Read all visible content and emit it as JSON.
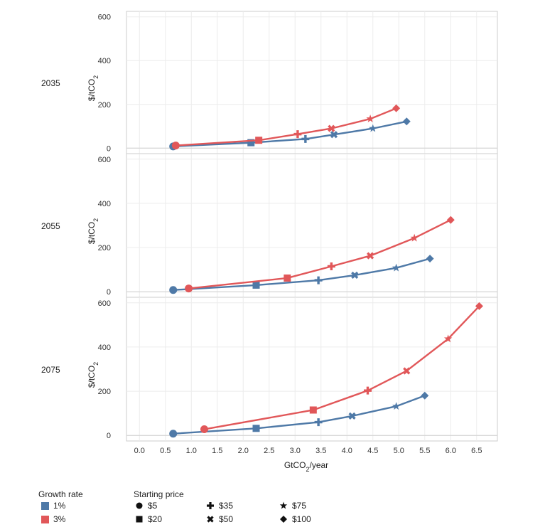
{
  "chart_data": {
    "type": "line",
    "xlabel": "GtCO2/year",
    "ylabel": "$/tCO2",
    "xlim": [
      -0.25,
      6.9
    ],
    "ylim": [
      -25,
      625
    ],
    "xticks": [
      "0.0",
      "0.5",
      "1.0",
      "1.5",
      "2.0",
      "2.5",
      "3.0",
      "3.5",
      "4.0",
      "4.5",
      "5.0",
      "5.5",
      "6.0",
      "6.5"
    ],
    "xtick_values": [
      0,
      0.5,
      1.0,
      1.5,
      2.0,
      2.5,
      3.0,
      3.5,
      4.0,
      4.5,
      5.0,
      5.5,
      6.0,
      6.5
    ],
    "yticks": [
      "0",
      "200",
      "400",
      "600"
    ],
    "ytick_values": [
      0,
      200,
      400,
      600
    ],
    "grid": true,
    "legend_position": "bottom-left",
    "starting_prices": [
      "$5",
      "$20",
      "$35",
      "$50",
      "$75",
      "$100"
    ],
    "markers": [
      "circle",
      "square",
      "plus",
      "x",
      "star",
      "diamond"
    ],
    "panels": [
      {
        "label": "2035",
        "series": [
          {
            "name": "1%",
            "color": "#4e79a7",
            "x": [
              0.65,
              2.15,
              3.2,
              3.75,
              4.5,
              5.15
            ],
            "y": [
              8,
              25,
              42,
              62,
              90,
              122
            ]
          },
          {
            "name": "3%",
            "color": "#e15759",
            "x": [
              0.7,
              2.3,
              3.05,
              3.7,
              4.45,
              4.95
            ],
            "y": [
              12,
              36,
              64,
              90,
              134,
              182
            ]
          }
        ]
      },
      {
        "label": "2055",
        "series": [
          {
            "name": "1%",
            "color": "#4e79a7",
            "x": [
              0.65,
              2.25,
              3.45,
              4.15,
              4.95,
              5.6
            ],
            "y": [
              8,
              30,
              52,
              75,
              108,
              150
            ]
          },
          {
            "name": "3%",
            "color": "#e15759",
            "x": [
              0.95,
              2.85,
              3.7,
              4.45,
              5.3,
              6.0
            ],
            "y": [
              15,
              62,
              115,
              163,
              243,
              325
            ]
          }
        ]
      },
      {
        "label": "2075",
        "series": [
          {
            "name": "1%",
            "color": "#4e79a7",
            "x": [
              0.65,
              2.25,
              3.45,
              4.1,
              4.95,
              5.5
            ],
            "y": [
              8,
              32,
              60,
              88,
              132,
              180
            ]
          },
          {
            "name": "3%",
            "color": "#e15759",
            "x": [
              1.25,
              3.35,
              4.4,
              5.15,
              5.95,
              6.55
            ],
            "y": [
              28,
              115,
              203,
              292,
              437,
              585
            ]
          }
        ]
      }
    ]
  },
  "legend": {
    "growth_title": "Growth rate",
    "growth_items": [
      {
        "label": "1%",
        "color": "#4e79a7"
      },
      {
        "label": "3%",
        "color": "#e15759"
      }
    ],
    "price_title": "Starting price",
    "price_items": [
      {
        "label": "$5",
        "marker": "circle"
      },
      {
        "label": "$20",
        "marker": "square"
      },
      {
        "label": "$35",
        "marker": "plus"
      },
      {
        "label": "$50",
        "marker": "x"
      },
      {
        "label": "$75",
        "marker": "star"
      },
      {
        "label": "$100",
        "marker": "diamond"
      }
    ]
  }
}
